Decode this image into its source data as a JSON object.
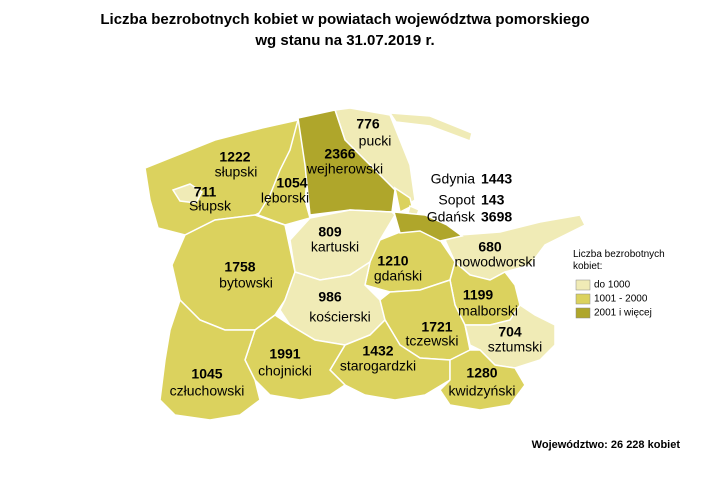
{
  "title": "Liczba bezrobotnych kobiet w powiatach województwa pomorskiego",
  "subtitle": "wg stanu na 31.07.2019 r.",
  "regions": [
    {
      "name": "pucki",
      "value": 776,
      "color": "#f0ebb6"
    },
    {
      "name": "wejherowski",
      "value": 2366,
      "color": "#afa62b"
    },
    {
      "name": "słupski",
      "value": 1222,
      "color": "#dbd25e"
    },
    {
      "name": "Słupsk",
      "value": 711,
      "color": "#f0ebb6"
    },
    {
      "name": "lęborski",
      "value": 1054,
      "color": "#dbd25e"
    },
    {
      "name": "kartuski",
      "value": 809,
      "color": "#f0ebb6"
    },
    {
      "name": "nowodworski",
      "value": 680,
      "color": "#f0ebb6"
    },
    {
      "name": "gdański",
      "value": 1210,
      "color": "#dbd25e"
    },
    {
      "name": "bytowski",
      "value": 1758,
      "color": "#dbd25e"
    },
    {
      "name": "kościerski",
      "value": 986,
      "color": "#f0ebb6"
    },
    {
      "name": "malborski",
      "value": 1199,
      "color": "#dbd25e"
    },
    {
      "name": "tczewski",
      "value": 1721,
      "color": "#dbd25e"
    },
    {
      "name": "sztumski",
      "value": 704,
      "color": "#f0ebb6"
    },
    {
      "name": "człuchowski",
      "value": 1045,
      "color": "#dbd25e"
    },
    {
      "name": "chojnicki",
      "value": 1991,
      "color": "#dbd25e"
    },
    {
      "name": "starogardzki",
      "value": 1432,
      "color": "#dbd25e"
    },
    {
      "name": "kwidzyński",
      "value": 1280,
      "color": "#dbd25e"
    }
  ],
  "cities": [
    {
      "name": "Gdynia",
      "value": 1443,
      "color": "#dbd25e"
    },
    {
      "name": "Sopot",
      "value": 143,
      "color": "#f0ebb6"
    },
    {
      "name": "Gdańsk",
      "value": 3698,
      "color": "#afa62b"
    }
  ],
  "legend": {
    "title": "Liczba bezrobotnych kobiet:",
    "items": [
      {
        "label": "do 1000",
        "color": "#f0ebb6"
      },
      {
        "label": "1001 - 2000",
        "color": "#dbd25e"
      },
      {
        "label": "2001 i więcej",
        "color": "#afa62b"
      }
    ]
  },
  "footer": "Województwo: 26 228 kobiet"
}
